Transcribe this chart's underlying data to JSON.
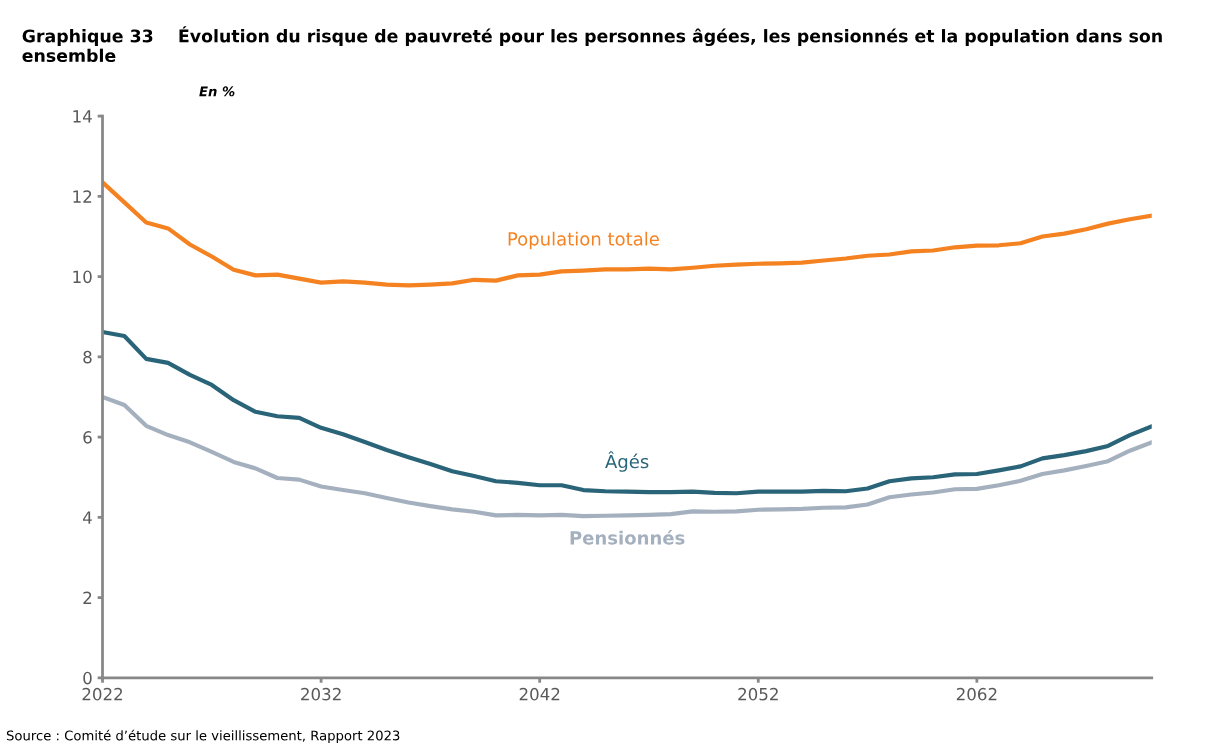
{
  "chart_data": {
    "type": "line",
    "title": "Graphique 33    Évolution du risque de pauvreté pour les personnes âgées, les pensionnés et la population dans son ensemble",
    "subtitle": "En %",
    "annotations": [
      "Source : Comité d’étude sur le vieillissement, Rapport 2023"
    ],
    "x": [
      2022,
      2023,
      2024,
      2025,
      2026,
      2027,
      2028,
      2029,
      2030,
      2031,
      2032,
      2033,
      2034,
      2035,
      2036,
      2037,
      2038,
      2039,
      2040,
      2041,
      2042,
      2043,
      2044,
      2045,
      2046,
      2047,
      2048,
      2049,
      2050,
      2051,
      2052,
      2053,
      2054,
      2055,
      2056,
      2057,
      2058,
      2059,
      2060,
      2061,
      2062,
      2063,
      2064,
      2065,
      2066,
      2067,
      2068,
      2069,
      2070
    ],
    "series": [
      {
        "name": "Population totale",
        "color": "#f58220",
        "values": [
          12.35,
          11.85,
          11.35,
          11.2,
          10.8,
          10.5,
          10.17,
          10.03,
          10.05,
          9.95,
          9.85,
          9.88,
          9.85,
          9.8,
          9.78,
          9.8,
          9.83,
          9.92,
          9.9,
          10.03,
          10.05,
          10.13,
          10.15,
          10.18,
          10.18,
          10.2,
          10.18,
          10.22,
          10.27,
          10.3,
          10.32,
          10.33,
          10.35,
          10.4,
          10.45,
          10.52,
          10.55,
          10.63,
          10.65,
          10.73,
          10.77,
          10.78,
          10.83,
          11.0,
          11.07,
          11.18,
          11.32,
          11.43,
          11.52
        ]
      },
      {
        "name": "Âgés",
        "color": "#2a6478",
        "values": [
          8.62,
          8.52,
          7.95,
          7.85,
          7.55,
          7.3,
          6.92,
          6.63,
          6.52,
          6.48,
          6.23,
          6.07,
          5.88,
          5.68,
          5.5,
          5.33,
          5.15,
          5.03,
          4.9,
          4.86,
          4.8,
          4.8,
          4.68,
          4.65,
          4.64,
          4.63,
          4.63,
          4.64,
          4.61,
          4.6,
          4.64,
          4.64,
          4.64,
          4.66,
          4.65,
          4.72,
          4.9,
          4.97,
          5.0,
          5.07,
          5.08,
          5.17,
          5.27,
          5.47,
          5.55,
          5.65,
          5.78,
          6.05,
          6.27
        ]
      },
      {
        "name": "Pensionnés",
        "color": "#a5b0bf",
        "values": [
          7.0,
          6.8,
          6.28,
          6.05,
          5.87,
          5.63,
          5.38,
          5.22,
          4.98,
          4.94,
          4.77,
          4.68,
          4.6,
          4.48,
          4.37,
          4.28,
          4.2,
          4.14,
          4.05,
          4.06,
          4.05,
          4.06,
          4.03,
          4.04,
          4.05,
          4.06,
          4.08,
          4.15,
          4.14,
          4.15,
          4.19,
          4.2,
          4.21,
          4.24,
          4.25,
          4.32,
          4.5,
          4.57,
          4.62,
          4.7,
          4.71,
          4.8,
          4.91,
          5.08,
          5.17,
          5.28,
          5.4,
          5.66,
          5.87
        ]
      }
    ],
    "xlim": [
      2022,
      2070
    ],
    "xticks": [
      2022,
      2032,
      2042,
      2052,
      2062
    ],
    "ylim": [
      0,
      14
    ],
    "yticks": [
      0,
      2,
      4,
      6,
      8,
      10,
      12,
      14
    ],
    "grid": false,
    "legend": false,
    "marker": "none",
    "line_style": "solid"
  }
}
